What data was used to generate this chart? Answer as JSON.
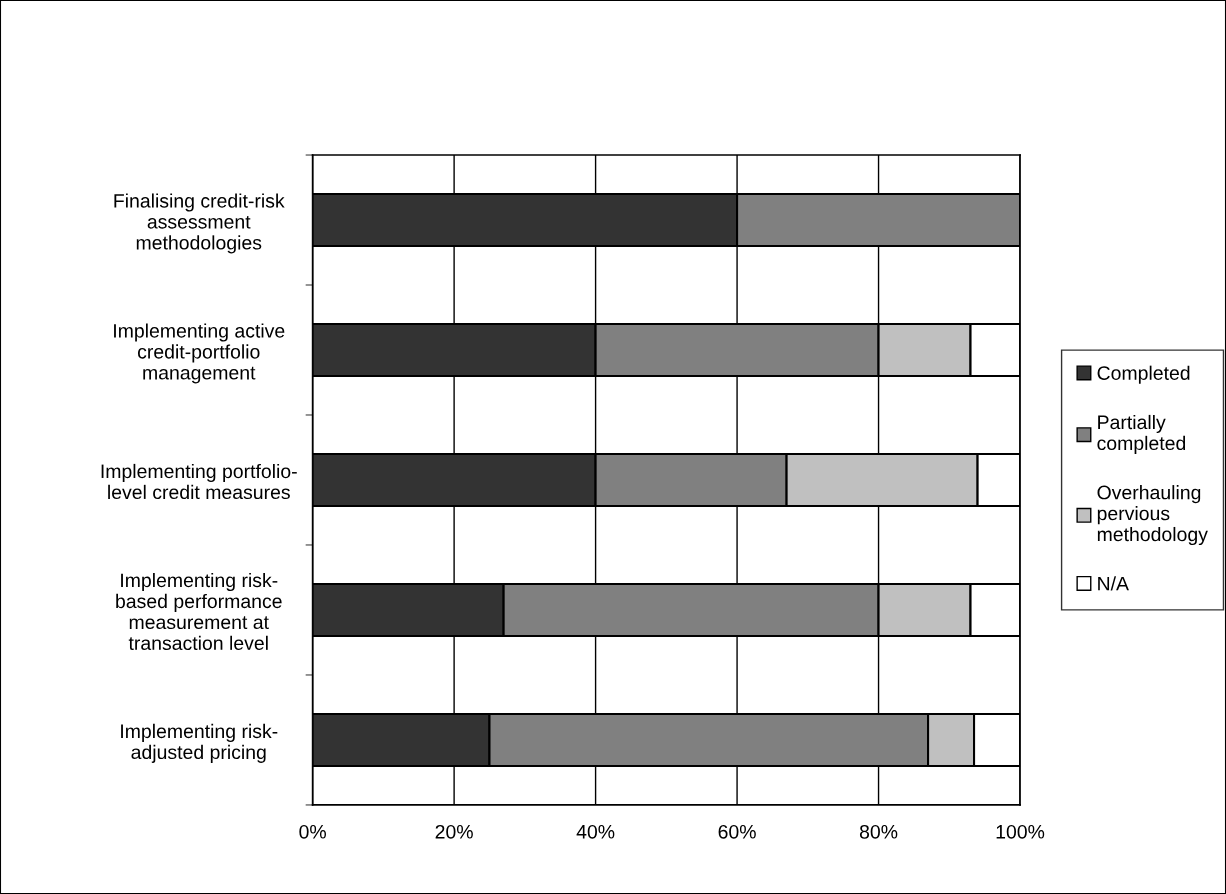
{
  "chart_data": {
    "type": "bar",
    "orientation": "horizontal",
    "stacked": true,
    "categories": [
      "Finalising credit-risk\nassessment\nmethodologies",
      "Implementing active\ncredit-portfolio\nmanagement",
      "Implementing portfolio-\nlevel credit measures",
      "Implementing risk-\nbased performance\nmeasurement at\ntransaction level",
      "Implementing risk-\nadjusted pricing"
    ],
    "series": [
      {
        "name": "Completed",
        "color": "#333333",
        "values": [
          60,
          40,
          40,
          27,
          25
        ]
      },
      {
        "name": "Partially\ncompleted",
        "color": "#808080",
        "values": [
          40,
          40,
          27,
          53,
          62
        ]
      },
      {
        "name": "Overhauling\npervious\nmethodology",
        "color": "#c0c0c0",
        "values": [
          0,
          13,
          27,
          13,
          6.5
        ]
      },
      {
        "name": "N/A",
        "color": "#ffffff",
        "values": [
          0,
          7,
          6,
          7,
          6.5
        ]
      }
    ],
    "xlim": [
      0,
      100
    ],
    "xticks": [
      {
        "value": 0,
        "label": "0%"
      },
      {
        "value": 20,
        "label": "20%"
      },
      {
        "value": 40,
        "label": "40%"
      },
      {
        "value": 60,
        "label": "60%"
      },
      {
        "value": 80,
        "label": "80%"
      },
      {
        "value": 100,
        "label": "100%"
      }
    ],
    "grid": "x",
    "legend": "right"
  }
}
